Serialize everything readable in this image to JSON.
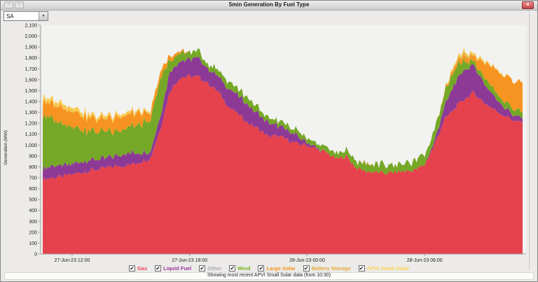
{
  "window": {
    "title": "5min Generation By Fuel Type",
    "close_label": "×",
    "corner_glyphs": [
      "~",
      "~"
    ]
  },
  "toolbar": {
    "region_selector": {
      "value": "SA",
      "dropdown_arrow": "▼"
    }
  },
  "chart_data": {
    "type": "area",
    "stacked": true,
    "title": "5min Generation By Fuel Type",
    "xlabel": "",
    "ylabel": "Generation (MW)",
    "ylim": [
      0,
      2100
    ],
    "y_tick_step": 100,
    "y_ticks": [
      0,
      100,
      200,
      300,
      400,
      500,
      600,
      700,
      800,
      900,
      1000,
      1100,
      1200,
      1300,
      1400,
      1500,
      1600,
      1700,
      1800,
      1900,
      2000,
      2100
    ],
    "grid": false,
    "legend_position": "bottom",
    "x_start": "27-Jun-23 10:30",
    "x_end": "28-Jun-23 11:00",
    "x_unit": "hours from 27-Jun-23 10:30",
    "x_hours": [
      0,
      0.5,
      1,
      1.5,
      2,
      2.5,
      3,
      3.5,
      4,
      4.5,
      5,
      5.5,
      6,
      6.5,
      7,
      7.5,
      8,
      8.5,
      9,
      9.5,
      10,
      10.5,
      11,
      11.5,
      12,
      12.5,
      13,
      13.5,
      14,
      14.5,
      15,
      15.5,
      16,
      16.5,
      17,
      17.5,
      18,
      18.5,
      19,
      19.5,
      20,
      20.5,
      21,
      21.5,
      22,
      22.5,
      23,
      23.5,
      24,
      24.5
    ],
    "x_ticks": [
      {
        "t": 1.5,
        "label": "27-Jun-23 12:00"
      },
      {
        "t": 7.5,
        "label": "27-Jun-23 18:00"
      },
      {
        "t": 13.5,
        "label": "28-Jun-23 00:00"
      },
      {
        "t": 19.5,
        "label": "28-Jun-23 06:00"
      }
    ],
    "series": [
      {
        "name": "Gas",
        "color": "#e5424d",
        "values": [
          690,
          700,
          710,
          730,
          750,
          770,
          780,
          800,
          810,
          820,
          850,
          880,
          1150,
          1500,
          1620,
          1630,
          1620,
          1560,
          1480,
          1350,
          1280,
          1200,
          1150,
          1080,
          1080,
          1050,
          1010,
          1000,
          960,
          930,
          870,
          900,
          790,
          760,
          750,
          740,
          750,
          760,
          770,
          820,
          1000,
          1230,
          1330,
          1420,
          1480,
          1395,
          1330,
          1280,
          1230,
          1200
        ]
      },
      {
        "name": "Liquid Fuel",
        "color": "#8d3a97",
        "values": [
          95,
          110,
          100,
          90,
          95,
          100,
          90,
          90,
          100,
          110,
          80,
          60,
          120,
          180,
          150,
          160,
          170,
          130,
          140,
          160,
          170,
          160,
          140,
          130,
          100,
          90,
          70,
          30,
          10,
          0,
          0,
          0,
          0,
          0,
          0,
          0,
          0,
          0,
          0,
          0,
          30,
          120,
          230,
          270,
          250,
          190,
          130,
          80,
          50,
          40
        ]
      },
      {
        "name": "Other",
        "color": "#a9a7ab",
        "values": [
          0,
          0,
          0,
          0,
          0,
          0,
          0,
          0,
          0,
          0,
          0,
          0,
          0,
          0,
          0,
          0,
          0,
          0,
          0,
          0,
          0,
          0,
          0,
          0,
          0,
          0,
          0,
          0,
          0,
          0,
          0,
          0,
          0,
          0,
          0,
          0,
          0,
          0,
          0,
          0,
          0,
          0,
          0,
          0,
          0,
          0,
          0,
          0,
          0,
          0
        ]
      },
      {
        "name": "Wind",
        "color": "#75a826",
        "values": [
          490,
          430,
          380,
          350,
          300,
          260,
          250,
          240,
          230,
          240,
          270,
          280,
          350,
          100,
          80,
          60,
          60,
          45,
          60,
          70,
          60,
          60,
          50,
          40,
          40,
          40,
          50,
          40,
          40,
          50,
          50,
          60,
          60,
          70,
          70,
          80,
          70,
          70,
          80,
          90,
          110,
          130,
          130,
          90,
          40,
          65,
          60,
          60,
          60,
          55
        ]
      },
      {
        "name": "Large Solar",
        "color": "#f79421",
        "values": [
          130,
          140,
          150,
          140,
          130,
          120,
          110,
          120,
          130,
          120,
          100,
          70,
          60,
          45,
          20,
          0,
          0,
          0,
          0,
          0,
          0,
          0,
          0,
          0,
          0,
          0,
          0,
          0,
          0,
          0,
          0,
          0,
          0,
          0,
          0,
          0,
          0,
          0,
          0,
          0,
          0,
          10,
          30,
          40,
          40,
          130,
          195,
          230,
          260,
          265
        ]
      },
      {
        "name": "Battery Storage",
        "color": "#dfa43e",
        "values": [
          0,
          0,
          0,
          0,
          0,
          0,
          0,
          0,
          0,
          0,
          0,
          0,
          0,
          0,
          0,
          0,
          0,
          0,
          0,
          0,
          0,
          0,
          0,
          0,
          0,
          0,
          0,
          0,
          0,
          0,
          0,
          0,
          0,
          10,
          0,
          0,
          0,
          0,
          0,
          0,
          0,
          0,
          10,
          20,
          10,
          0,
          0,
          0,
          0,
          0
        ]
      },
      {
        "name": "APVI Small Solar",
        "color": "#f8ca52",
        "values": [
          40,
          40,
          40,
          35,
          35,
          30,
          30,
          30,
          25,
          25,
          20,
          15,
          10,
          0,
          0,
          0,
          0,
          0,
          0,
          0,
          0,
          0,
          0,
          0,
          0,
          0,
          0,
          0,
          0,
          0,
          0,
          0,
          0,
          0,
          0,
          0,
          0,
          0,
          0,
          0,
          0,
          5,
          20,
          30,
          20,
          20,
          10,
          10,
          0,
          0
        ]
      }
    ]
  },
  "legend": {
    "check_glyph": "✔",
    "items": [
      {
        "label": "Gas",
        "color": "#e8414d",
        "checked": true
      },
      {
        "label": "Liquid Fuel",
        "color": "#99349f",
        "checked": true
      },
      {
        "label": "Other",
        "color": "#a9a7ab",
        "checked": true
      },
      {
        "label": "Wind",
        "color": "#74b11a",
        "checked": true
      },
      {
        "label": "Large Solar",
        "color": "#f7941d",
        "checked": true
      },
      {
        "label": "Battery Storage",
        "color": "#e9a83a",
        "checked": true
      },
      {
        "label": "APVI Small Solar",
        "color": "#ffd24d",
        "checked": true
      }
    ]
  },
  "footer": {
    "note": "Showing most recent APVI Small Solar data (from 10:30)"
  }
}
